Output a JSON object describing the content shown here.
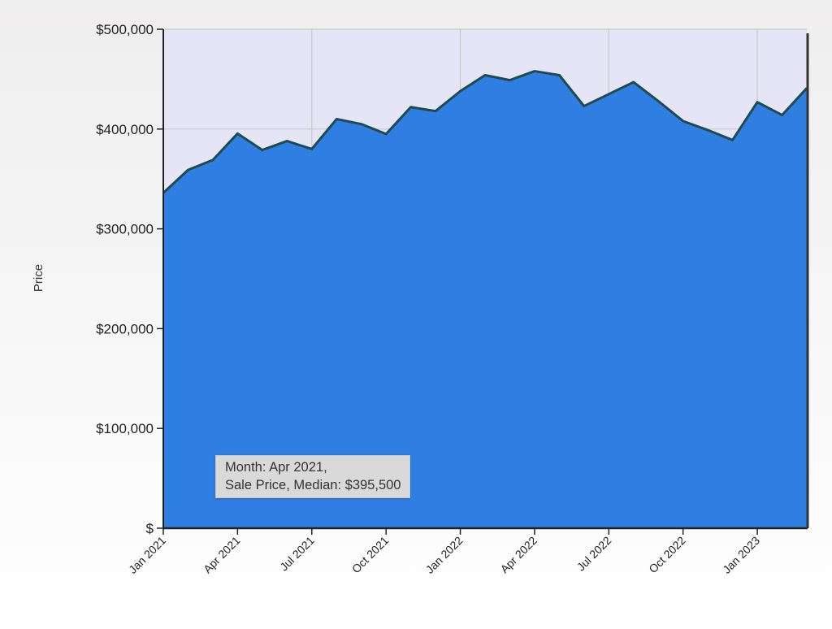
{
  "chart_data": {
    "type": "area",
    "title": "",
    "xlabel": "",
    "ylabel": "Price",
    "ylim": [
      0,
      500000
    ],
    "yticks": [
      0,
      100000,
      200000,
      300000,
      400000,
      500000
    ],
    "ytick_labels": [
      "$",
      "$100,000",
      "$200,000",
      "$300,000",
      "$400,000",
      "$500,000"
    ],
    "xtick_labels": [
      "Jan 2021",
      "Apr 2021",
      "Jul 2021",
      "Oct 2021",
      "Jan 2022",
      "Apr 2022",
      "Jul 2022",
      "Oct 2022",
      "Jan 2023"
    ],
    "grid": true,
    "fill_color": "#2f7fe3",
    "line_color": "#1f4b50",
    "plot_background": "#e6e5f6",
    "x": [
      "Jan 2021",
      "Feb 2021",
      "Mar 2021",
      "Apr 2021",
      "May 2021",
      "Jun 2021",
      "Jul 2021",
      "Aug 2021",
      "Sep 2021",
      "Oct 2021",
      "Nov 2021",
      "Dec 2021",
      "Jan 2022",
      "Feb 2022",
      "Mar 2022",
      "Apr 2022",
      "May 2022",
      "Jun 2022",
      "Jul 2022",
      "Aug 2022",
      "Sep 2022",
      "Oct 2022",
      "Nov 2022",
      "Dec 2022",
      "Jan 2023",
      "Feb 2023",
      "Mar 2023"
    ],
    "series": [
      {
        "values": [
          336000,
          359000,
          369000,
          395500,
          379000,
          388000,
          380000,
          410000,
          405000,
          395000,
          422000,
          418000,
          438000,
          454000,
          449000,
          458000,
          454000,
          423000,
          435000,
          447000,
          428000,
          408000,
          399000,
          389000,
          427000,
          414000,
          441000
        ]
      }
    ]
  },
  "tooltip": {
    "line1": "Month: Apr 2021,",
    "line2": "Sale Price, Median: $395,500"
  }
}
